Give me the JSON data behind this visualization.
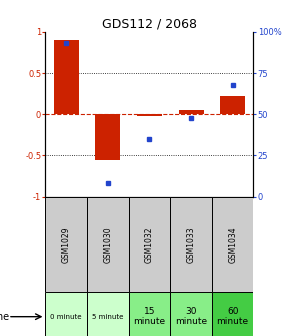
{
  "title": "GDS112 / 2068",
  "samples": [
    "GSM1029",
    "GSM1030",
    "GSM1032",
    "GSM1033",
    "GSM1034"
  ],
  "log_ratios": [
    0.9,
    -0.55,
    -0.02,
    0.05,
    0.22
  ],
  "percentiles": [
    93,
    8,
    35,
    48,
    68
  ],
  "time_labels": [
    "0 minute",
    "5 minute",
    "15\nminute",
    "30\nminute",
    "60\nminute"
  ],
  "time_colors": [
    "#ccffcc",
    "#ccffcc",
    "#88ee88",
    "#88ee88",
    "#44cc44"
  ],
  "sample_color": "#cccccc",
  "bar_color": "#cc2200",
  "dot_color": "#2244cc",
  "zero_line_color": "#cc2200",
  "ylim_left": [
    -1,
    1
  ],
  "ylim_right": [
    0,
    100
  ],
  "yticks_left": [
    -1,
    -0.5,
    0,
    0.5,
    1
  ],
  "yticks_right": [
    0,
    25,
    50,
    75,
    100
  ],
  "ytick_labels_left": [
    "-1",
    "-0.5",
    "0",
    "0.5",
    "1"
  ],
  "ytick_labels_right": [
    "0",
    "25",
    "50",
    "75",
    "100%"
  ],
  "bar_width": 0.6,
  "background_color": "#ffffff"
}
